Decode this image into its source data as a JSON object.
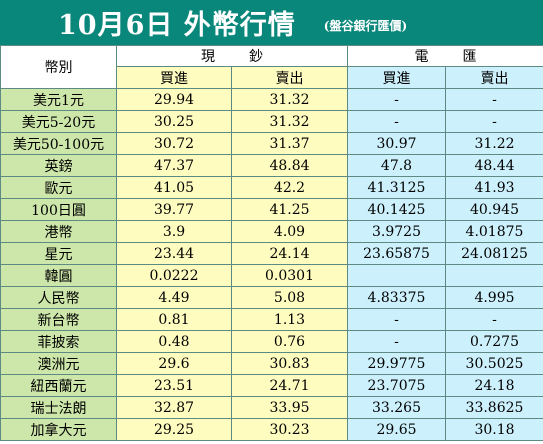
{
  "header": {
    "title": "10月6日 外幣行情",
    "source": "(盤谷銀行匯價)"
  },
  "table": {
    "currency_header": "幣別",
    "groups": [
      "現鈔",
      "電匯"
    ],
    "subheaders": [
      "買進",
      "賣出",
      "買進",
      "賣出"
    ],
    "rows": [
      {
        "currency": "美元1元",
        "cash_buy": "29.94",
        "cash_sell": "31.32",
        "tt_buy": "-",
        "tt_sell": "-"
      },
      {
        "currency": "美元5-20元",
        "cash_buy": "30.25",
        "cash_sell": "31.32",
        "tt_buy": "-",
        "tt_sell": "-"
      },
      {
        "currency": "美元50-100元",
        "cash_buy": "30.72",
        "cash_sell": "31.37",
        "tt_buy": "30.97",
        "tt_sell": "31.22"
      },
      {
        "currency": "英鎊",
        "cash_buy": "47.37",
        "cash_sell": "48.84",
        "tt_buy": "47.8",
        "tt_sell": "48.44"
      },
      {
        "currency": "歐元",
        "cash_buy": "41.05",
        "cash_sell": "42.2",
        "tt_buy": "41.3125",
        "tt_sell": "41.93"
      },
      {
        "currency": "100日圓",
        "cash_buy": "39.77",
        "cash_sell": "41.25",
        "tt_buy": "40.1425",
        "tt_sell": "40.945"
      },
      {
        "currency": "港幣",
        "cash_buy": "3.9",
        "cash_sell": "4.09",
        "tt_buy": "3.9725",
        "tt_sell": "4.01875"
      },
      {
        "currency": "星元",
        "cash_buy": "23.44",
        "cash_sell": "24.14",
        "tt_buy": "23.65875",
        "tt_sell": "24.08125"
      },
      {
        "currency": "韓圓",
        "cash_buy": "0.0222",
        "cash_sell": "0.0301",
        "tt_buy": "",
        "tt_sell": ""
      },
      {
        "currency": "人民幣",
        "cash_buy": "4.49",
        "cash_sell": "5.08",
        "tt_buy": "4.83375",
        "tt_sell": "4.995"
      },
      {
        "currency": "新台幣",
        "cash_buy": "0.81",
        "cash_sell": "1.13",
        "tt_buy": "-",
        "tt_sell": "-"
      },
      {
        "currency": "菲披索",
        "cash_buy": "0.48",
        "cash_sell": "0.76",
        "tt_buy": "-",
        "tt_sell": "0.7275"
      },
      {
        "currency": "澳洲元",
        "cash_buy": "29.6",
        "cash_sell": "30.83",
        "tt_buy": "29.9775",
        "tt_sell": "30.5025"
      },
      {
        "currency": "紐西蘭元",
        "cash_buy": "23.51",
        "cash_sell": "24.71",
        "tt_buy": "23.7075",
        "tt_sell": "24.18"
      },
      {
        "currency": "瑞士法朗",
        "cash_buy": "32.87",
        "cash_sell": "33.95",
        "tt_buy": "33.265",
        "tt_sell": "33.8625"
      },
      {
        "currency": "加拿大元",
        "cash_buy": "29.25",
        "cash_sell": "30.23",
        "tt_buy": "29.65",
        "tt_sell": "30.18"
      }
    ]
  }
}
